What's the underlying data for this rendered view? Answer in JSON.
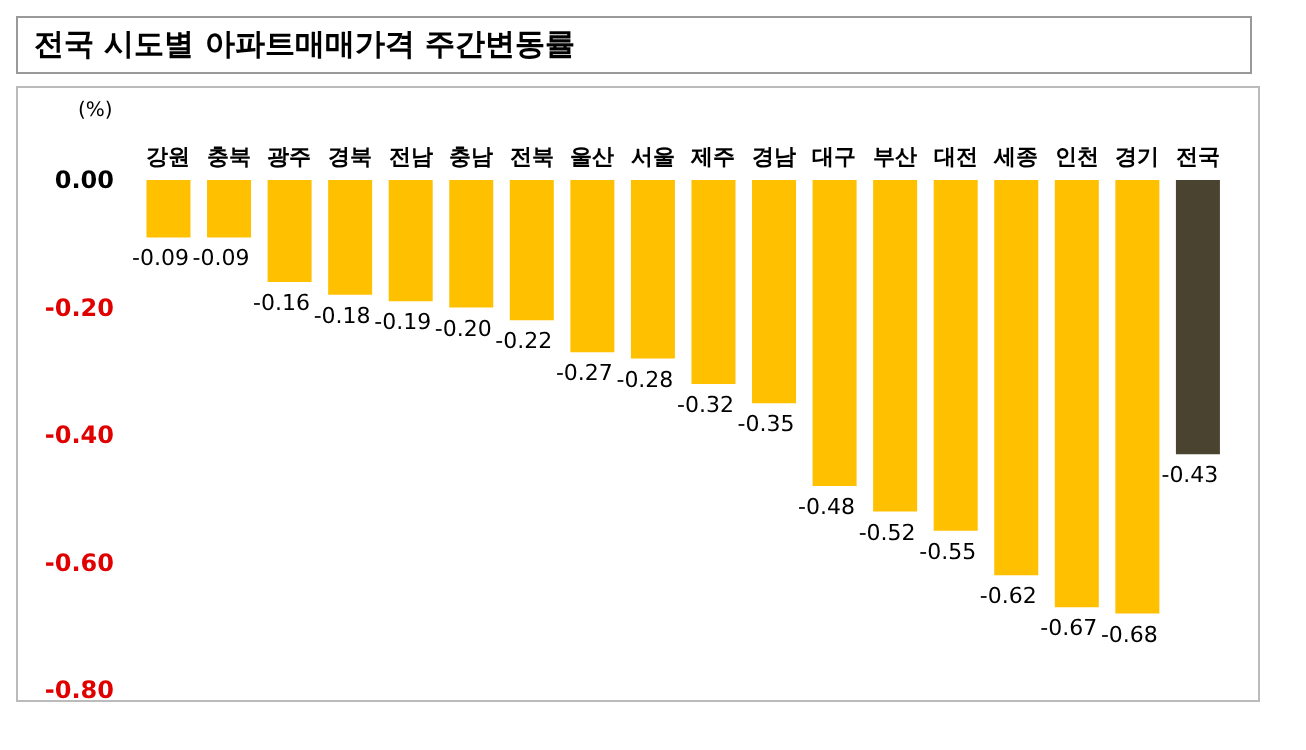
{
  "chart_data": {
    "type": "bar",
    "title": "전국 시도별 아파트매매가격 주간변동률",
    "ylabel": "(%)",
    "categories": [
      "강원",
      "충북",
      "광주",
      "경북",
      "전남",
      "충남",
      "전북",
      "울산",
      "서울",
      "제주",
      "경남",
      "대구",
      "부산",
      "대전",
      "세종",
      "인천",
      "경기",
      "전국"
    ],
    "values": [
      -0.09,
      -0.09,
      -0.16,
      -0.18,
      -0.19,
      -0.2,
      -0.22,
      -0.27,
      -0.28,
      -0.32,
      -0.35,
      -0.48,
      -0.52,
      -0.55,
      -0.62,
      -0.67,
      -0.68,
      -0.43
    ],
    "colors": [
      "#ffc000",
      "#ffc000",
      "#ffc000",
      "#ffc000",
      "#ffc000",
      "#ffc000",
      "#ffc000",
      "#ffc000",
      "#ffc000",
      "#ffc000",
      "#ffc000",
      "#ffc000",
      "#ffc000",
      "#ffc000",
      "#ffc000",
      "#ffc000",
      "#ffc000",
      "#4a4330"
    ],
    "ylim": [
      -0.8,
      0
    ],
    "yticks": [
      {
        "value": 0,
        "label": "0.00"
      },
      {
        "value": -0.2,
        "label": "-0.20"
      },
      {
        "value": -0.4,
        "label": "-0.40"
      },
      {
        "value": -0.6,
        "label": "-0.60"
      },
      {
        "value": -0.8,
        "label": "-0.80"
      }
    ],
    "value_labels": [
      "-0.09",
      "-0.09",
      "-0.16",
      "-0.18",
      "-0.19",
      "-0.20",
      "-0.22",
      "-0.27",
      "-0.28",
      "-0.32",
      "-0.35",
      "-0.48",
      "-0.52",
      "-0.55",
      "-0.62",
      "-0.67",
      "-0.68",
      "-0.43"
    ],
    "grid": false,
    "legend": false
  }
}
